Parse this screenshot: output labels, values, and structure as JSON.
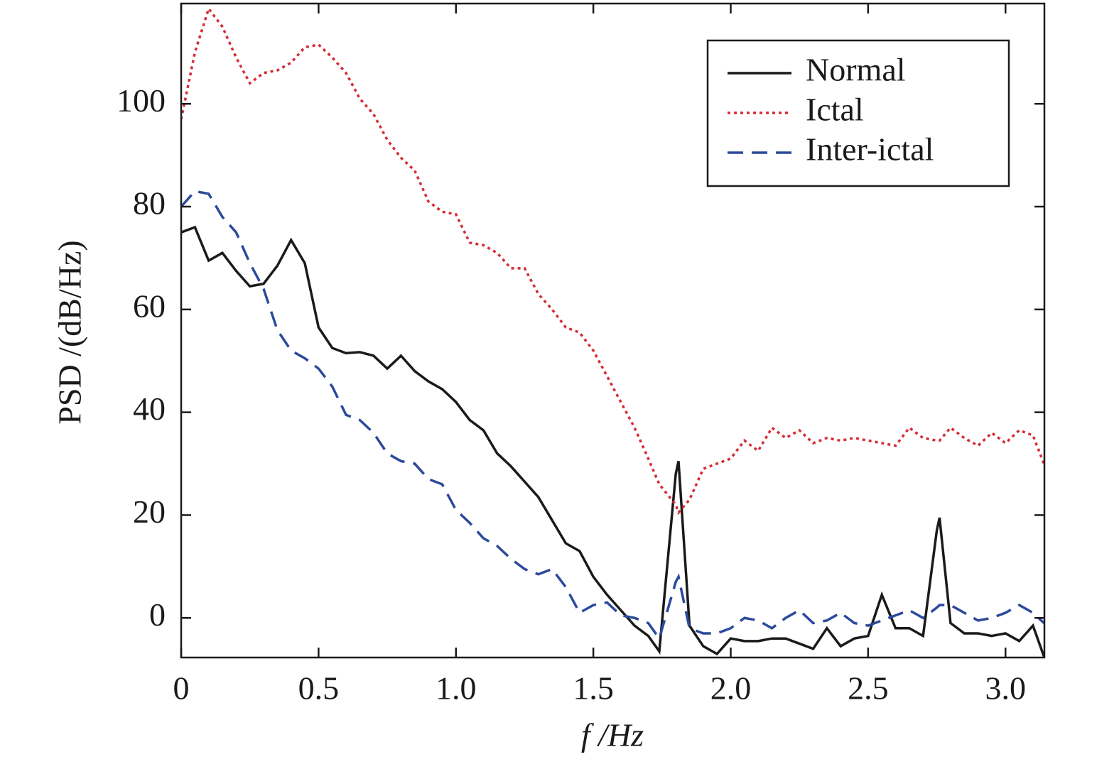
{
  "chart_data": {
    "type": "line",
    "xlabel": "f /Hz",
    "ylabel": "PSD /(dB/Hz)",
    "x": [
      0,
      0.05,
      0.1,
      0.15,
      0.2,
      0.25,
      0.3,
      0.35,
      0.4,
      0.45,
      0.5,
      0.55,
      0.6,
      0.65,
      0.7,
      0.75,
      0.8,
      0.85,
      0.9,
      0.95,
      1.0,
      1.05,
      1.1,
      1.15,
      1.2,
      1.25,
      1.3,
      1.35,
      1.4,
      1.45,
      1.5,
      1.55,
      1.6,
      1.65,
      1.7,
      1.74,
      1.8,
      1.81,
      1.85,
      1.9,
      1.95,
      2.0,
      2.05,
      2.1,
      2.15,
      2.2,
      2.25,
      2.3,
      2.35,
      2.4,
      2.45,
      2.5,
      2.55,
      2.6,
      2.65,
      2.7,
      2.75,
      2.76,
      2.8,
      2.85,
      2.9,
      2.95,
      3.0,
      3.05,
      3.1,
      3.14
    ],
    "series": [
      {
        "name": "Normal",
        "color": "#1a1a1a",
        "dash": "none",
        "values": [
          75,
          76,
          69.5,
          71,
          67.5,
          64.5,
          65,
          68.5,
          73.5,
          69,
          56.5,
          52.5,
          51.5,
          51.7,
          51,
          48.5,
          51,
          48,
          46,
          44.5,
          42,
          38.5,
          36.5,
          32,
          29.5,
          26.5,
          23.5,
          19,
          14.5,
          13,
          8,
          4.5,
          1.5,
          -1.5,
          -3.5,
          -6.5,
          28,
          30.5,
          -1.5,
          -5.5,
          -7,
          -4,
          -4.5,
          -4.5,
          -4,
          -4,
          -5,
          -6,
          -2,
          -5.5,
          -4,
          -3.5,
          4.5,
          -2,
          -2,
          -3.5,
          17,
          19.5,
          -1,
          -3,
          -3,
          -3.5,
          -3,
          -4.5,
          -1.5,
          -7.5
        ]
      },
      {
        "name": "Ictal",
        "color": "#d62c35",
        "dash": "4 5",
        "values": [
          97,
          110,
          118.5,
          115,
          109,
          104,
          106,
          106.5,
          108,
          111,
          111.5,
          109,
          106,
          101,
          98,
          93,
          89.5,
          87,
          81,
          79,
          78.5,
          73,
          72.5,
          71,
          68,
          68,
          63,
          60,
          56.5,
          55.5,
          52,
          47,
          42,
          37,
          31,
          26,
          22,
          20.5,
          23,
          29,
          30,
          31,
          34.5,
          32.5,
          37,
          35,
          36.5,
          34,
          35,
          34.5,
          35,
          34.5,
          34,
          33.5,
          37,
          35,
          34.5,
          34.5,
          37,
          35,
          33.5,
          36,
          34,
          36.5,
          35.5,
          30
        ]
      },
      {
        "name": "Inter-ictal",
        "color": "#2c4a9c",
        "dash": "22 12",
        "values": [
          80,
          83,
          82.5,
          78,
          75,
          69,
          64,
          56,
          52,
          50.5,
          48.5,
          45,
          39.5,
          38.5,
          36,
          32,
          30.5,
          30,
          27,
          26,
          21,
          18.5,
          15.5,
          14,
          11.5,
          9.5,
          8.5,
          9.5,
          6,
          1,
          2.5,
          3,
          0.5,
          0,
          -1,
          -4,
          7,
          8,
          -2,
          -3,
          -3,
          -2,
          0,
          -0.5,
          -2,
          0,
          1.5,
          -1,
          -0.5,
          1,
          -1,
          -1.5,
          -0.5,
          0.5,
          1.5,
          0,
          2,
          2.5,
          2.5,
          1,
          -0.5,
          0,
          1,
          2.5,
          1,
          -1
        ]
      }
    ],
    "xlim": [
      0,
      3.1416
    ],
    "ylim": [
      -7.7,
      119.5
    ],
    "xticks": [
      0,
      0.5,
      {
        "value": 1,
        "label": "1.0"
      },
      1.5,
      {
        "value": 2,
        "label": "2.0"
      },
      2.5,
      {
        "value": 3,
        "label": "3.0"
      }
    ],
    "yticks": [
      0,
      20,
      40,
      60,
      80,
      100
    ],
    "legend": "upper right",
    "grid": false
  }
}
